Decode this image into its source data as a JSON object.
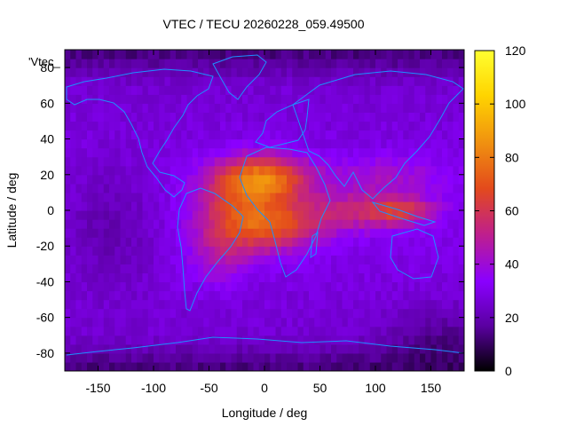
{
  "chart_data": {
    "type": "heatmap",
    "title": "VTEC / TECU 20260228_059.49500",
    "xlabel": "Longitude / deg",
    "ylabel": "Latitude / deg",
    "series_key_label": "'Vtec_",
    "xlim": [
      -180,
      180
    ],
    "ylim": [
      -90,
      90
    ],
    "x_ticks": [
      -150,
      -100,
      -50,
      0,
      50,
      100,
      150
    ],
    "y_ticks": [
      -80,
      -60,
      -40,
      -20,
      0,
      20,
      40,
      60,
      80
    ],
    "colorbar": {
      "range": [
        0,
        120
      ],
      "ticks": [
        0,
        20,
        40,
        60,
        80,
        100,
        120
      ],
      "palette": [
        "#000000",
        "#5a00a0",
        "#8a00ff",
        "#c0208a",
        "#e34a1c",
        "#f09010",
        "#ffd400",
        "#ffff30"
      ]
    },
    "coastline_color": "#1e90ff",
    "grid_resolution_deg": 5,
    "field_description_values": {
      "background_min": 10,
      "equatorial_anomaly_peak": 104,
      "peak_location": {
        "lon": 0,
        "lat": 18
      }
    }
  }
}
